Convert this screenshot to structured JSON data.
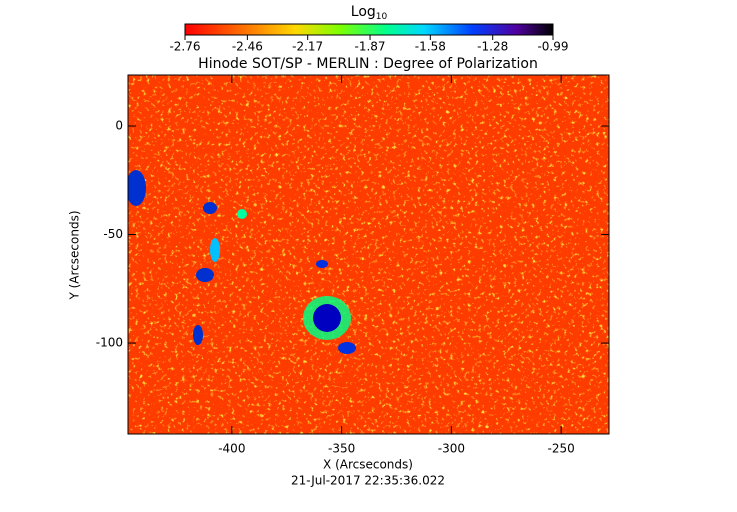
{
  "chart_data": {
    "type": "heatmap",
    "title": "Hinode SOT/SP - MERLIN : Degree of Polarization",
    "colorbar_label": "Log",
    "colorbar_label_sub": "10",
    "clim": [
      -2.76,
      -0.99
    ],
    "cticks": [
      -2.76,
      -2.46,
      -2.17,
      -1.87,
      -1.58,
      -1.28,
      -0.99
    ],
    "xlabel": "X (Arcseconds)",
    "ylabel": "Y (Arcseconds)",
    "xlim": [
      -447.3,
      -228.2
    ],
    "xticks": [
      -400,
      -350,
      -300,
      -250
    ],
    "ylim": [
      -141.9,
      23.5
    ],
    "yticks": [
      -100,
      -50,
      0
    ],
    "footer": "21-Jul-2017 22:35:36.022"
  }
}
